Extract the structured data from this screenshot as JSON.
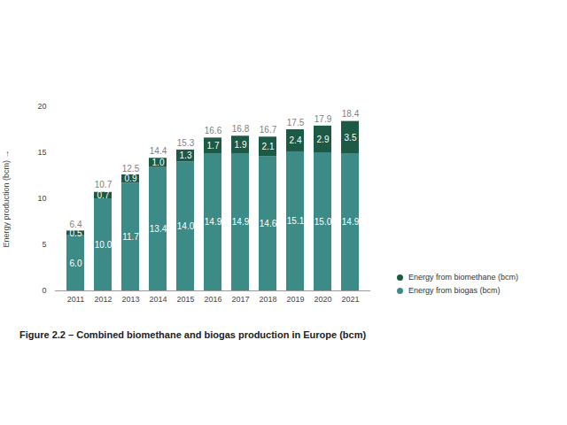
{
  "chart_data": {
    "type": "bar",
    "title": "Figure 2.2 – Combined biomethane and biogas production in Europe (bcm)",
    "y_label": "Energy production (bcm)",
    "categories": [
      "2011",
      "2012",
      "2013",
      "2014",
      "2015",
      "2016",
      "2017",
      "2018",
      "2019",
      "2020",
      "2021"
    ],
    "series": [
      {
        "name": "Energy from biogas (bcm)",
        "color": "#3d8b86",
        "values": [
          6.0,
          10.0,
          11.7,
          13.4,
          14.0,
          14.9,
          14.9,
          14.6,
          15.1,
          15.0,
          14.9
        ],
        "value_labels": [
          "6.0",
          "10.0",
          "11.7",
          "13.4",
          "14.0",
          "14.9",
          "14.9",
          "14.6",
          "15.1",
          "15.0",
          "14.9"
        ]
      },
      {
        "name": "Energy from biomethane (bcm)",
        "color": "#1d5a46",
        "values": [
          0.5,
          0.7,
          0.9,
          1.0,
          1.3,
          1.7,
          1.9,
          2.1,
          2.4,
          2.9,
          3.5
        ],
        "value_labels": [
          "0.5",
          "0.7",
          "0.9",
          "1.0",
          "1.3",
          "1.7",
          "1.9",
          "2.1",
          "2.4",
          "2.9",
          "3.5"
        ]
      }
    ],
    "totals": [
      6.4,
      10.7,
      12.5,
      14.4,
      15.3,
      16.6,
      16.8,
      16.7,
      17.5,
      17.9,
      18.4
    ],
    "ylim": [
      0,
      20
    ],
    "yticks": [
      0,
      5,
      10,
      15,
      20
    ],
    "stacked": true,
    "data_labels": true,
    "grid": false,
    "legend": "right"
  }
}
